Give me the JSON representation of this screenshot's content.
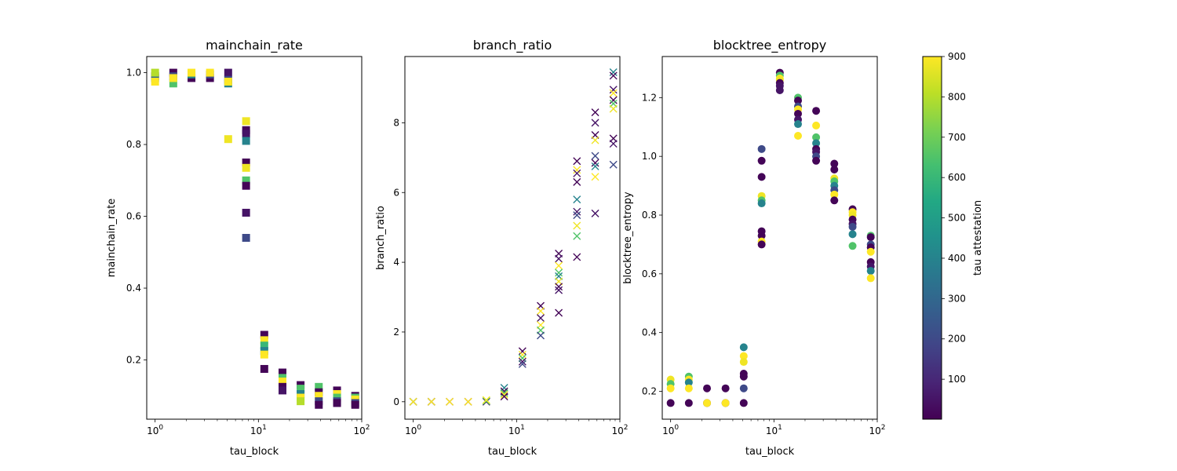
{
  "colorbar": {
    "label": "tau attestation",
    "ticks": [
      100,
      200,
      300,
      400,
      500,
      600,
      700,
      800,
      900
    ],
    "min": 1,
    "max": 900,
    "colormap": "viridis"
  },
  "chart_data": [
    {
      "type": "scatter",
      "marker": "square",
      "title": "mainchain_rate",
      "xlabel": "tau_block",
      "ylabel": "mainchain_rate",
      "xscale": "log",
      "xlim": [
        0.83,
        100
      ],
      "ylim": [
        0.035,
        1.045
      ],
      "yticks": [
        0.2,
        0.4,
        0.6,
        0.8,
        1.0
      ],
      "yticklabels": [
        "0.2",
        "0.4",
        "0.6",
        "0.8",
        "1.0"
      ],
      "points": [
        [
          1.0,
          0.99,
          10
        ],
        [
          1.0,
          0.985,
          300
        ],
        [
          1.0,
          0.975,
          900
        ],
        [
          1.0,
          1.0,
          800
        ],
        [
          1.5,
          1.0,
          10
        ],
        [
          1.5,
          0.99,
          200
        ],
        [
          1.5,
          0.97,
          650
        ],
        [
          1.5,
          0.985,
          900
        ],
        [
          2.25,
          0.985,
          10
        ],
        [
          2.25,
          0.995,
          400
        ],
        [
          2.25,
          1.0,
          900
        ],
        [
          3.4,
          0.985,
          10
        ],
        [
          3.4,
          0.995,
          200
        ],
        [
          3.4,
          1.0,
          900
        ],
        [
          5.1,
          1.0,
          50
        ],
        [
          5.1,
          0.98,
          200
        ],
        [
          5.1,
          0.97,
          400
        ],
        [
          5.1,
          0.975,
          900
        ],
        [
          5.1,
          0.815,
          880
        ],
        [
          7.6,
          0.865,
          880
        ],
        [
          7.6,
          0.84,
          10
        ],
        [
          7.6,
          0.83,
          50
        ],
        [
          7.6,
          0.81,
          400
        ],
        [
          7.6,
          0.75,
          10
        ],
        [
          7.6,
          0.735,
          880
        ],
        [
          7.6,
          0.7,
          650
        ],
        [
          7.6,
          0.685,
          10
        ],
        [
          7.6,
          0.61,
          50
        ],
        [
          7.6,
          0.54,
          200
        ],
        [
          11.4,
          0.27,
          10
        ],
        [
          11.4,
          0.255,
          900
        ],
        [
          11.4,
          0.24,
          600
        ],
        [
          11.4,
          0.225,
          400
        ],
        [
          11.4,
          0.215,
          900
        ],
        [
          11.4,
          0.175,
          10
        ],
        [
          17.1,
          0.165,
          10
        ],
        [
          17.1,
          0.15,
          650
        ],
        [
          17.1,
          0.14,
          900
        ],
        [
          17.1,
          0.125,
          10
        ],
        [
          17.1,
          0.115,
          50
        ],
        [
          25.6,
          0.13,
          10
        ],
        [
          25.6,
          0.12,
          650
        ],
        [
          25.6,
          0.105,
          400
        ],
        [
          25.6,
          0.095,
          900
        ],
        [
          25.6,
          0.085,
          800
        ],
        [
          38.4,
          0.125,
          650
        ],
        [
          38.4,
          0.11,
          10
        ],
        [
          38.4,
          0.1,
          900
        ],
        [
          38.4,
          0.085,
          200
        ],
        [
          38.4,
          0.075,
          10
        ],
        [
          57.7,
          0.115,
          10
        ],
        [
          57.7,
          0.105,
          900
        ],
        [
          57.7,
          0.095,
          650
        ],
        [
          57.7,
          0.085,
          200
        ],
        [
          57.7,
          0.08,
          10
        ],
        [
          86.5,
          0.1,
          10
        ],
        [
          86.5,
          0.095,
          650
        ],
        [
          86.5,
          0.09,
          900
        ],
        [
          86.5,
          0.08,
          200
        ],
        [
          86.5,
          0.075,
          10
        ]
      ]
    },
    {
      "type": "scatter",
      "marker": "x",
      "title": "branch_ratio",
      "xlabel": "tau_block",
      "ylabel": "branch_ratio",
      "xscale": "log",
      "xlim": [
        0.83,
        100
      ],
      "ylim": [
        -0.5,
        9.9
      ],
      "yticks": [
        0,
        2,
        4,
        6,
        8
      ],
      "yticklabels": [
        "0",
        "2",
        "4",
        "6",
        "8"
      ],
      "points": [
        [
          1.0,
          0.0,
          10
        ],
        [
          1.0,
          0.0,
          400
        ],
        [
          1.0,
          0.0,
          900
        ],
        [
          1.5,
          0.0,
          10
        ],
        [
          1.5,
          0.0,
          200
        ],
        [
          1.5,
          0.0,
          900
        ],
        [
          2.25,
          0.0,
          10
        ],
        [
          2.25,
          0.0,
          900
        ],
        [
          3.4,
          0.0,
          10
        ],
        [
          3.4,
          0.0,
          900
        ],
        [
          5.1,
          0.0,
          10
        ],
        [
          5.1,
          0.02,
          650
        ],
        [
          5.1,
          0.05,
          900
        ],
        [
          7.6,
          0.4,
          400
        ],
        [
          7.6,
          0.3,
          10
        ],
        [
          7.6,
          0.25,
          650
        ],
        [
          7.6,
          0.2,
          900
        ],
        [
          7.6,
          0.15,
          10
        ],
        [
          11.4,
          1.45,
          10
        ],
        [
          11.4,
          1.35,
          900
        ],
        [
          11.4,
          1.25,
          650
        ],
        [
          11.4,
          1.15,
          50
        ],
        [
          11.4,
          1.08,
          200
        ],
        [
          17.1,
          2.75,
          10
        ],
        [
          17.1,
          2.6,
          900
        ],
        [
          17.1,
          2.4,
          50
        ],
        [
          17.1,
          2.2,
          900
        ],
        [
          17.1,
          2.05,
          650
        ],
        [
          17.1,
          1.9,
          200
        ],
        [
          25.6,
          4.25,
          10
        ],
        [
          25.6,
          4.1,
          50
        ],
        [
          25.6,
          3.9,
          900
        ],
        [
          25.6,
          3.7,
          650
        ],
        [
          25.6,
          3.6,
          400
        ],
        [
          25.6,
          3.45,
          880
        ],
        [
          25.6,
          3.3,
          10
        ],
        [
          25.6,
          3.2,
          50
        ],
        [
          25.6,
          2.55,
          10
        ],
        [
          38.4,
          6.9,
          10
        ],
        [
          38.4,
          6.65,
          900
        ],
        [
          38.4,
          6.55,
          50
        ],
        [
          38.4,
          6.3,
          10
        ],
        [
          38.4,
          5.8,
          400
        ],
        [
          38.4,
          5.45,
          50
        ],
        [
          38.4,
          5.35,
          200
        ],
        [
          38.4,
          5.05,
          880
        ],
        [
          38.4,
          4.75,
          650
        ],
        [
          38.4,
          4.15,
          10
        ],
        [
          57.7,
          8.3,
          10
        ],
        [
          57.7,
          8.0,
          50
        ],
        [
          57.7,
          7.65,
          10
        ],
        [
          57.7,
          7.5,
          880
        ],
        [
          57.7,
          7.05,
          200
        ],
        [
          57.7,
          6.85,
          10
        ],
        [
          57.7,
          6.75,
          400
        ],
        [
          57.7,
          6.45,
          900
        ],
        [
          57.7,
          5.4,
          50
        ],
        [
          86.5,
          9.45,
          400
        ],
        [
          86.5,
          9.35,
          10
        ],
        [
          86.5,
          8.95,
          50
        ],
        [
          86.5,
          8.85,
          900
        ],
        [
          86.5,
          8.65,
          10
        ],
        [
          86.5,
          8.55,
          650
        ],
        [
          86.5,
          8.4,
          880
        ],
        [
          86.5,
          7.55,
          10
        ],
        [
          86.5,
          7.4,
          50
        ],
        [
          86.5,
          6.8,
          200
        ]
      ]
    },
    {
      "type": "scatter",
      "marker": "circle",
      "title": "blocktree_entropy",
      "xlabel": "tau_block",
      "ylabel": "blocktree_entropy",
      "xscale": "log",
      "xlim": [
        0.83,
        100
      ],
      "ylim": [
        0.105,
        1.34
      ],
      "yticks": [
        0.2,
        0.4,
        0.6,
        0.8,
        1.0,
        1.2
      ],
      "yticklabels": [
        "0.2",
        "0.4",
        "0.6",
        "0.8",
        "1.0",
        "1.2"
      ],
      "points": [
        [
          1.0,
          0.24,
          880
        ],
        [
          1.0,
          0.225,
          650
        ],
        [
          1.0,
          0.21,
          900
        ],
        [
          1.0,
          0.16,
          10
        ],
        [
          1.5,
          0.25,
          650
        ],
        [
          1.5,
          0.24,
          900
        ],
        [
          1.5,
          0.23,
          400
        ],
        [
          1.5,
          0.21,
          900
        ],
        [
          1.5,
          0.16,
          10
        ],
        [
          2.25,
          0.21,
          10
        ],
        [
          2.25,
          0.16,
          10
        ],
        [
          2.25,
          0.16,
          900
        ],
        [
          3.4,
          0.21,
          10
        ],
        [
          3.4,
          0.16,
          10
        ],
        [
          3.4,
          0.16,
          900
        ],
        [
          5.1,
          0.35,
          400
        ],
        [
          5.1,
          0.32,
          900
        ],
        [
          5.1,
          0.3,
          880
        ],
        [
          5.1,
          0.26,
          10
        ],
        [
          5.1,
          0.25,
          10
        ],
        [
          5.1,
          0.21,
          200
        ],
        [
          5.1,
          0.16,
          10
        ],
        [
          7.6,
          1.025,
          200
        ],
        [
          7.6,
          0.985,
          10
        ],
        [
          7.6,
          0.93,
          10
        ],
        [
          7.6,
          0.865,
          880
        ],
        [
          7.6,
          0.85,
          650
        ],
        [
          7.6,
          0.84,
          400
        ],
        [
          7.6,
          0.745,
          10
        ],
        [
          7.6,
          0.73,
          10
        ],
        [
          7.6,
          0.71,
          900
        ],
        [
          7.6,
          0.7,
          10
        ],
        [
          11.4,
          1.285,
          10
        ],
        [
          11.4,
          1.275,
          650
        ],
        [
          11.4,
          1.265,
          900
        ],
        [
          11.4,
          1.26,
          880
        ],
        [
          11.4,
          1.25,
          10
        ],
        [
          11.4,
          1.24,
          50
        ],
        [
          11.4,
          1.225,
          50
        ],
        [
          17.1,
          1.2,
          650
        ],
        [
          17.1,
          1.19,
          10
        ],
        [
          17.1,
          1.17,
          200
        ],
        [
          17.1,
          1.16,
          900
        ],
        [
          17.1,
          1.145,
          10
        ],
        [
          17.1,
          1.125,
          50
        ],
        [
          17.1,
          1.11,
          400
        ],
        [
          17.1,
          1.07,
          900
        ],
        [
          25.6,
          1.155,
          10
        ],
        [
          25.6,
          1.105,
          900
        ],
        [
          25.6,
          1.065,
          650
        ],
        [
          25.6,
          1.045,
          400
        ],
        [
          25.6,
          1.025,
          10
        ],
        [
          25.6,
          1.015,
          50
        ],
        [
          25.6,
          1.0,
          200
        ],
        [
          25.6,
          0.985,
          10
        ],
        [
          38.4,
          0.975,
          10
        ],
        [
          38.4,
          0.955,
          10
        ],
        [
          38.4,
          0.925,
          880
        ],
        [
          38.4,
          0.915,
          650
        ],
        [
          38.4,
          0.9,
          400
        ],
        [
          38.4,
          0.885,
          200
        ],
        [
          38.4,
          0.87,
          900
        ],
        [
          38.4,
          0.85,
          10
        ],
        [
          57.7,
          0.82,
          10
        ],
        [
          57.7,
          0.81,
          900
        ],
        [
          57.7,
          0.8,
          880
        ],
        [
          57.7,
          0.785,
          10
        ],
        [
          57.7,
          0.77,
          50
        ],
        [
          57.7,
          0.76,
          200
        ],
        [
          57.7,
          0.735,
          400
        ],
        [
          57.7,
          0.695,
          650
        ],
        [
          86.5,
          0.73,
          650
        ],
        [
          86.5,
          0.725,
          10
        ],
        [
          86.5,
          0.7,
          200
        ],
        [
          86.5,
          0.69,
          10
        ],
        [
          86.5,
          0.675,
          900
        ],
        [
          86.5,
          0.64,
          10
        ],
        [
          86.5,
          0.625,
          50
        ],
        [
          86.5,
          0.61,
          400
        ],
        [
          86.5,
          0.585,
          900
        ]
      ]
    }
  ],
  "xticklabels": [
    {
      "value": 1,
      "base": "10",
      "exp": "0"
    },
    {
      "value": 10,
      "base": "10",
      "exp": "1"
    },
    {
      "value": 100,
      "base": "10",
      "exp": "2"
    }
  ]
}
